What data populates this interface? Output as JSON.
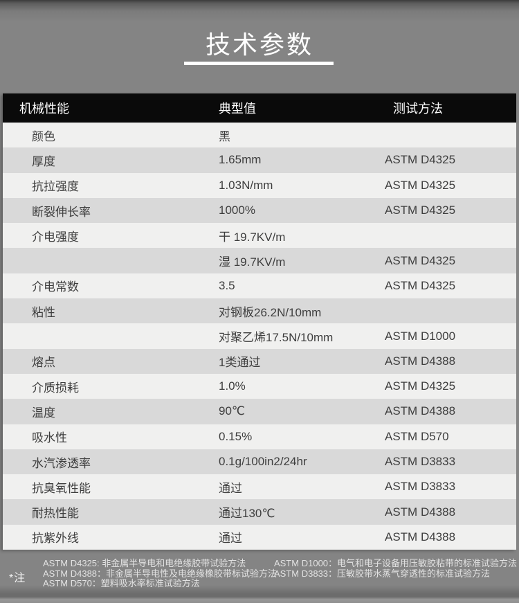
{
  "page": {
    "title": "技术参数"
  },
  "table": {
    "headers": [
      "机械性能",
      "典型值",
      "测试方法"
    ],
    "rows": [
      {
        "property": "颜色",
        "value": "黑",
        "method": ""
      },
      {
        "property": "厚度",
        "value": "1.65mm",
        "method": "ASTM D4325"
      },
      {
        "property": "抗拉强度",
        "value": "1.03N/mm",
        "method": "ASTM D4325"
      },
      {
        "property": "断裂伸长率",
        "value": "1000%",
        "method": "ASTM D4325"
      },
      {
        "property": "介电强度",
        "value": "干 19.7KV/m",
        "method": ""
      },
      {
        "property": "",
        "value": "湿 19.7KV/m",
        "method": "ASTM D4325"
      },
      {
        "property": "介电常数",
        "value": "3.5",
        "method": "ASTM D4325"
      },
      {
        "property": "粘性",
        "value": "对钢板26.2N/10mm",
        "method": ""
      },
      {
        "property": "",
        "value": "对聚乙烯17.5N/10mm",
        "method": "ASTM D1000"
      },
      {
        "property": "熔点",
        "value": "1类通过",
        "method": "ASTM D4388"
      },
      {
        "property": "介质损耗",
        "value": "1.0%",
        "method": "ASTM D4325"
      },
      {
        "property": "温度",
        "value": "90℃",
        "method": "ASTM D4388"
      },
      {
        "property": "吸水性",
        "value": "0.15%",
        "method": "ASTM D570"
      },
      {
        "property": "水汽渗透率",
        "value": "0.1g/100in2/24hr",
        "method": "ASTM D3833"
      },
      {
        "property": "抗臭氧性能",
        "value": "通过",
        "method": "ASTM D3833"
      },
      {
        "property": "耐热性能",
        "value": "通过130℃",
        "method": "ASTM D4388"
      },
      {
        "property": "抗紫外线",
        "value": "通过",
        "method": "ASTM D4388"
      }
    ]
  },
  "notes": {
    "label": "*注",
    "left": [
      "ASTM D4325: 非金属半导电和电绝缘胶带试验方法",
      "ASTM D4388：非金属半导电性及电绝缘橡胶带标试验方法",
      "ASTM D570：塑料吸水率标准试验方法"
    ],
    "right": [
      "ASTM D1000：电气和电子设备用压敏胶粘带的标准试验方法",
      "ASTM D3833：压敏胶带水蒸气穿透性的标准试验方法"
    ]
  },
  "colors": {
    "page_background": "#848484",
    "header_background": "#0a0a0a",
    "header_text": "#ffffff",
    "row_light": "#f0f0ef",
    "row_dark": "#d9d9d9",
    "row_text": "#3e3e3e",
    "title_text": "#ffffff",
    "notes_text": "#e2e2e2"
  }
}
